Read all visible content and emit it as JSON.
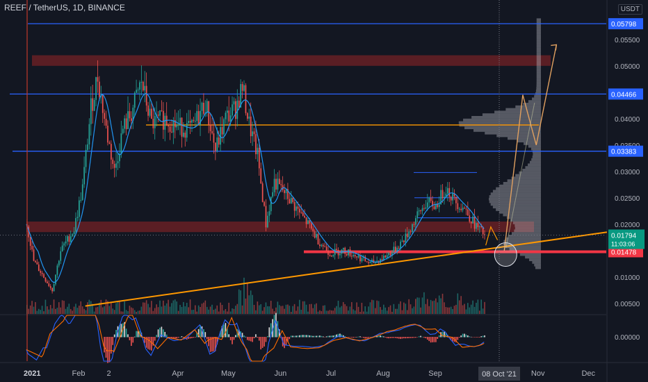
{
  "header": {
    "symbol_title": "REEF / TetherUS, 1D, BINANCE",
    "currency": "USDT"
  },
  "price_axis": {
    "ticks": [
      "0.05500",
      "0.05000",
      "0.04000",
      "0.03500",
      "0.03000",
      "0.02500",
      "0.02000",
      "0.01000",
      "0.00500"
    ],
    "tick_values": [
      0.055,
      0.05,
      0.04,
      0.035,
      0.03,
      0.025,
      0.02,
      0.01,
      0.005
    ]
  },
  "level_labels": [
    {
      "text": "0.05798",
      "value": 0.05798,
      "color": "#2962ff"
    },
    {
      "text": "0.04466",
      "value": 0.04466,
      "color": "#2962ff"
    },
    {
      "text": "0.03383",
      "value": 0.03383,
      "color": "#2962ff"
    },
    {
      "text": "0.01478",
      "value": 0.01478,
      "color": "#f23645"
    }
  ],
  "current_price": {
    "text": "0.01794",
    "countdown": "11:03:06",
    "value": 0.01794,
    "color": "#089981"
  },
  "time_axis": {
    "labels": [
      "2021",
      "Feb",
      "2",
      "Apr",
      "May",
      "Jun",
      "Jul",
      "Aug",
      "Sep",
      "Oct",
      "Nov",
      "Dec"
    ],
    "label_days": [
      0,
      31,
      49,
      90,
      120,
      151,
      181,
      212,
      243,
      273,
      304,
      334
    ],
    "highlight": "08 Oct '21",
    "highlight_day": 281
  },
  "oscillator": {
    "zero_label": "0.00000"
  },
  "colors": {
    "bg": "#131722",
    "up": "#26a69a",
    "down": "#ef5350",
    "blue": "#2962ff",
    "orange": "#ff9800",
    "red": "#f23645"
  },
  "chart_data": {
    "type": "candlestick",
    "ylim": [
      0.003,
      0.0605
    ],
    "scale": "linear",
    "grid": false,
    "horizontal_levels": [
      0.05798,
      0.04466,
      0.03383,
      0.01478,
      0.0388
    ],
    "zones": [
      {
        "from": 0.05,
        "to": 0.052
      },
      {
        "from": 0.0185,
        "to": 0.0205
      }
    ],
    "close_path": [
      {
        "day": 0,
        "price": 0.02
      },
      {
        "day": 4,
        "price": 0.013
      },
      {
        "day": 10,
        "price": 0.01
      },
      {
        "day": 15,
        "price": 0.0075
      },
      {
        "day": 20,
        "price": 0.015
      },
      {
        "day": 28,
        "price": 0.019
      },
      {
        "day": 33,
        "price": 0.027
      },
      {
        "day": 38,
        "price": 0.042
      },
      {
        "day": 42,
        "price": 0.048
      },
      {
        "day": 47,
        "price": 0.038
      },
      {
        "day": 52,
        "price": 0.03
      },
      {
        "day": 57,
        "price": 0.038
      },
      {
        "day": 62,
        "price": 0.041
      },
      {
        "day": 68,
        "price": 0.047
      },
      {
        "day": 74,
        "price": 0.039
      },
      {
        "day": 82,
        "price": 0.04
      },
      {
        "day": 90,
        "price": 0.0385
      },
      {
        "day": 98,
        "price": 0.038
      },
      {
        "day": 106,
        "price": 0.043
      },
      {
        "day": 112,
        "price": 0.034
      },
      {
        "day": 118,
        "price": 0.04
      },
      {
        "day": 124,
        "price": 0.042
      },
      {
        "day": 128,
        "price": 0.046
      },
      {
        "day": 132,
        "price": 0.039
      },
      {
        "day": 137,
        "price": 0.033
      },
      {
        "day": 142,
        "price": 0.02
      },
      {
        "day": 147,
        "price": 0.028
      },
      {
        "day": 153,
        "price": 0.026
      },
      {
        "day": 160,
        "price": 0.023
      },
      {
        "day": 167,
        "price": 0.02
      },
      {
        "day": 173,
        "price": 0.017
      },
      {
        "day": 180,
        "price": 0.0145
      },
      {
        "day": 188,
        "price": 0.015
      },
      {
        "day": 196,
        "price": 0.014
      },
      {
        "day": 204,
        "price": 0.0125
      },
      {
        "day": 211,
        "price": 0.0135
      },
      {
        "day": 218,
        "price": 0.015
      },
      {
        "day": 225,
        "price": 0.0175
      },
      {
        "day": 231,
        "price": 0.021
      },
      {
        "day": 237,
        "price": 0.024
      },
      {
        "day": 243,
        "price": 0.0235
      },
      {
        "day": 249,
        "price": 0.027
      },
      {
        "day": 254,
        "price": 0.0245
      },
      {
        "day": 260,
        "price": 0.023
      },
      {
        "day": 266,
        "price": 0.02
      },
      {
        "day": 272,
        "price": 0.0179
      }
    ],
    "trendline": [
      {
        "day": 35,
        "price": 0.0045
      },
      {
        "day": 345,
        "price": 0.0185
      }
    ],
    "projection": [
      {
        "day": 284,
        "price": 0.015
      },
      {
        "day": 295,
        "price": 0.0445
      },
      {
        "day": 303,
        "price": 0.035
      },
      {
        "day": 315,
        "price": 0.054
      }
    ],
    "volume_profile_center": 0.0388
  }
}
